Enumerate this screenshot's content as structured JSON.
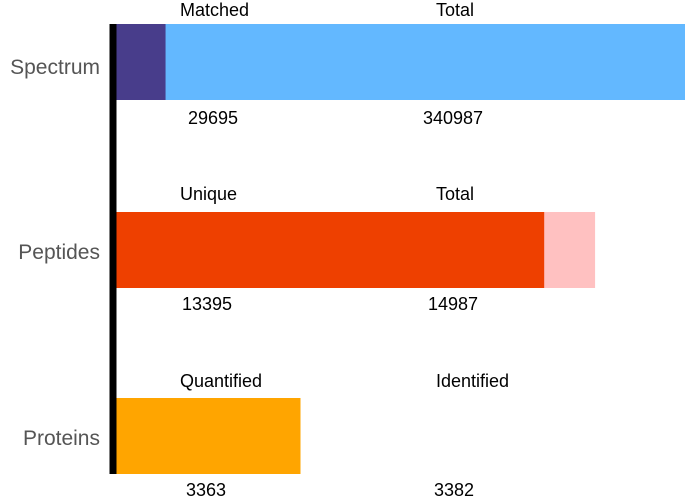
{
  "chart_data": {
    "type": "bar",
    "orientation": "horizontal",
    "categories": [
      "Spectrum",
      "Peptides",
      "Proteins"
    ],
    "groups": [
      {
        "category": "Spectrum",
        "inner": {
          "label": "Matched",
          "value": 29695,
          "color": "#483d8b"
        },
        "outer": {
          "label": "Total",
          "value": 340987,
          "color": "#63b8ff"
        },
        "scale_max": 340987
      },
      {
        "category": "Peptides",
        "inner": {
          "label": "Unique",
          "value": 13395,
          "color": "#ee4000"
        },
        "outer": {
          "label": "Total",
          "value": 14987,
          "color": "#ffc1c1"
        },
        "scale_max": 17800
      },
      {
        "category": "Proteins",
        "inner": {
          "label": "Quantified",
          "value": 3363,
          "color": "#ffa500"
        },
        "outer": {
          "label": "Identified",
          "value": 3382,
          "color": "#ffa500"
        },
        "scale_max": 10430
      }
    ],
    "title": "",
    "xlabel": "",
    "ylabel": "",
    "grid": false,
    "axis_color": "#000000"
  }
}
